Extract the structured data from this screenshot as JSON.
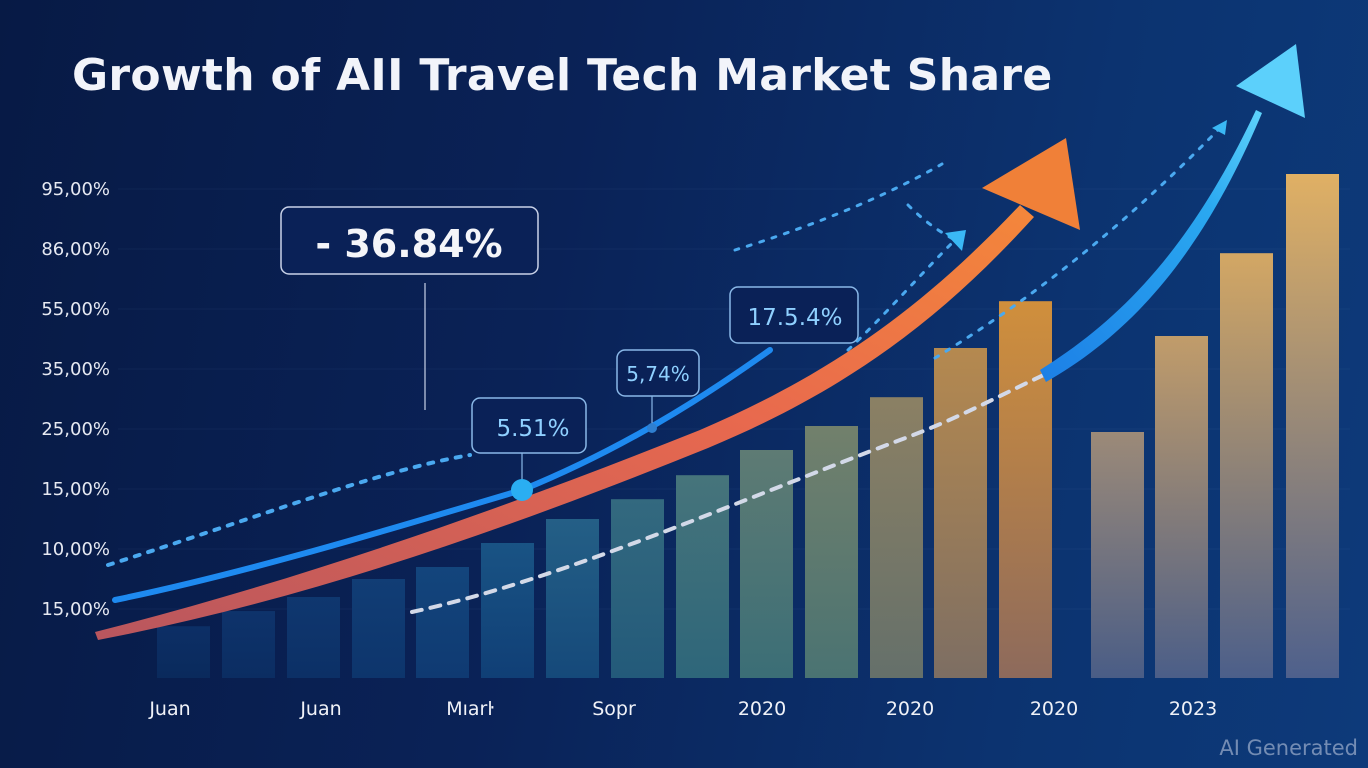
{
  "chart_data": {
    "type": "bar",
    "title": "Growth of AII Travel Tech Market Share",
    "xlabel": "",
    "ylabel": "",
    "grid": false,
    "legend": "none",
    "y_tick_labels": [
      "95,00%",
      "86,00%",
      "55,00%",
      "35,00%",
      "25,00%",
      "15,00%",
      "10,00%",
      "15,00%"
    ],
    "x_tick_labels": [
      "Juan",
      "Juan",
      "Mıarŀ",
      "Sopr",
      "2020",
      "2020",
      "2020",
      "2023"
    ],
    "bar_index_scale_note": "values in tick-index units: 0 = baseline, 1 = lowest tick (15,00%), 8 = top tick (95,00%)",
    "bars": {
      "values": [
        0.75,
        0.97,
        1.2,
        1.5,
        1.7,
        2.1,
        2.5,
        2.83,
        3.23,
        3.65,
        4.05,
        4.53,
        5.35,
        6.13,
        3.95,
        5.55,
        6.93,
        8.25
      ],
      "colors_bottom": [
        "#0a2a5c",
        "#0b2d62",
        "#0c3066",
        "#0d356c",
        "#0f3a72",
        "#103f76",
        "#15497a",
        "#235a7a",
        "#2e667a",
        "#3b6e76",
        "#4a7372",
        "#65706a",
        "#7d6e63",
        "#8d6a5c",
        "#4a5d86",
        "#4b5e88",
        "#4c5f8a",
        "#4e608c"
      ],
      "colors_top": [
        "#0c2f66",
        "#0e336b",
        "#0f376f",
        "#113d75",
        "#13457c",
        "#195384",
        "#245f86",
        "#33697f",
        "#46747b",
        "#5e7b74",
        "#72806c",
        "#8b8064",
        "#b5894f",
        "#d08f3c",
        "#9c8a78",
        "#c19c6a",
        "#d3a764",
        "#e0b064"
      ]
    },
    "series": [
      {
        "name": "blue-solid-curve",
        "color": "#1e90ee",
        "style": "solid",
        "ends_with_arrow": true
      },
      {
        "name": "orange-curve",
        "color": "#ef7a4a",
        "style": "solid",
        "ends_with_arrow": true
      },
      {
        "name": "blue-dotted-upper",
        "color": "#4aa9f0",
        "style": "dotted",
        "ends_with_arrow": true
      },
      {
        "name": "blue-dotted-right",
        "color": "#4aa9f0",
        "style": "dotted",
        "ends_with_arrow": true
      },
      {
        "name": "white-dashed",
        "color": "#cfd6e6",
        "style": "dashed",
        "ends_with_arrow": false
      }
    ],
    "annotations": [
      {
        "text": "- 36.84%",
        "target": "leader-line"
      },
      {
        "text": "5.51%",
        "target": "blue-solid-curve"
      },
      {
        "text": "5,74%",
        "target": "blue-solid-curve"
      },
      {
        "text": "17.5.4%",
        "target": "blue-solid-curve"
      }
    ]
  },
  "watermark": "AI Generated"
}
